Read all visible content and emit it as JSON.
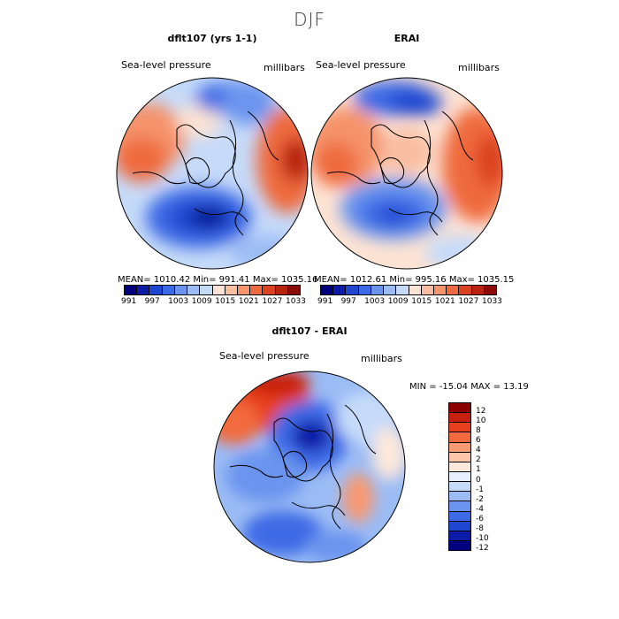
{
  "figure": {
    "season": "DJF"
  },
  "panels": [
    {
      "title": "dflt107 (yrs 1-1)",
      "left_label": "Sea-level pressure",
      "right_label": "millibars",
      "stats": "MEAN= 1010.42   Min= 991.41   Max= 1035.16"
    },
    {
      "title": "ERAI",
      "left_label": "Sea-level pressure",
      "right_label": "millibars",
      "stats": "MEAN= 1012.61   Min= 995.16   Max= 1035.15"
    },
    {
      "title": "dflt107 - ERAI",
      "left_label": "Sea-level pressure",
      "right_label": "millibars",
      "stats": "MIN = -15.04  MAX =  13.19"
    }
  ],
  "colorbar_abs": {
    "colors": [
      "#00007f",
      "#0a1ca8",
      "#1e46d0",
      "#3c6ae6",
      "#6a94ee",
      "#9bbcf5",
      "#c6dbf9",
      "#fde3d3",
      "#f9bda0",
      "#f5936b",
      "#ef6a3e",
      "#dc4220",
      "#b82410",
      "#8b0a0a"
    ],
    "tick_labels": [
      "991",
      "997",
      "1003",
      "1009",
      "1015",
      "1021",
      "1027",
      "1033"
    ]
  },
  "colorbar_diff": {
    "colors": [
      "#8b0000",
      "#c8200e",
      "#e8401e",
      "#f26a3e",
      "#f79a72",
      "#fbc6aa",
      "#fde8dc",
      "#e6efff",
      "#c6dbf9",
      "#9bbcf5",
      "#6a94ee",
      "#3c6ae6",
      "#1e46d0",
      "#0a1ca8",
      "#00007f"
    ],
    "tick_labels": [
      "12",
      "10",
      "8",
      "6",
      "4",
      "2",
      "1",
      "0",
      "-1",
      "-2",
      "-4",
      "-6",
      "-8",
      "-10",
      "-12"
    ]
  }
}
